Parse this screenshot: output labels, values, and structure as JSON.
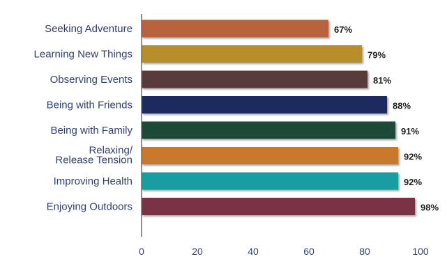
{
  "chart_data": {
    "type": "bar",
    "orientation": "horizontal",
    "categories": [
      "Seeking Adventure",
      "Learning New Things",
      "Observing Events",
      "Being with Friends",
      "Being with Family",
      "Relaxing/Release Tension",
      "Improving Health",
      "Enjoying Outdoors"
    ],
    "values": [
      67,
      79,
      81,
      88,
      91,
      92,
      92,
      98
    ],
    "value_labels": [
      "67%",
      "79%",
      "81%",
      "88%",
      "91%",
      "92%",
      "92%",
      "98%"
    ],
    "bar_colors": [
      "#b8643c",
      "#b68f2c",
      "#5a3a3a",
      "#1e2a5e",
      "#1f4a37",
      "#c9792c",
      "#139ea0",
      "#7a3346"
    ],
    "xlim": [
      0,
      100
    ],
    "xticks": [
      0,
      20,
      40,
      60,
      80,
      100
    ],
    "grid": false,
    "legend": "none"
  }
}
